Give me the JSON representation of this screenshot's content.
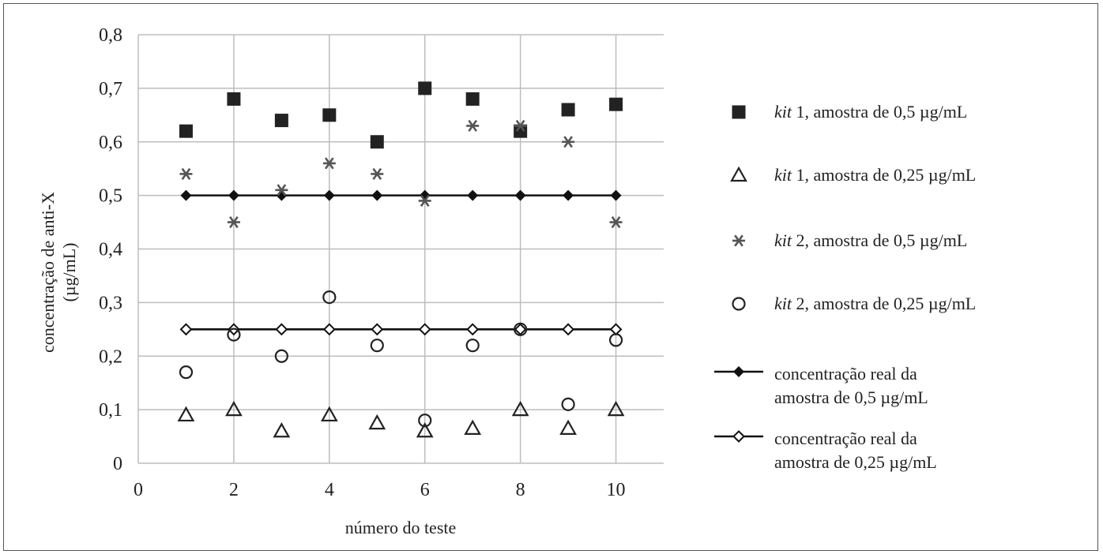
{
  "chart_data": {
    "type": "scatter",
    "xlabel": "número do teste",
    "ylabel_line1": "concentração de anti-X",
    "ylabel_line2": "(µg/mL)",
    "xlim": [
      0,
      11
    ],
    "ylim": [
      0,
      0.8
    ],
    "xticks": [
      0,
      2,
      4,
      6,
      8,
      10
    ],
    "yticks": [
      0,
      0.1,
      0.2,
      0.3,
      0.4,
      0.5,
      0.6,
      0.7,
      0.8
    ],
    "xtick_labels": [
      "0",
      "2",
      "4",
      "6",
      "8",
      "10"
    ],
    "ytick_labels": [
      "0",
      "0,1",
      "0,2",
      "0,3",
      "0,4",
      "0,5",
      "0,6",
      "0,7",
      "0,8"
    ],
    "grid": true,
    "legend_position": "right",
    "x": [
      1,
      2,
      3,
      4,
      5,
      6,
      7,
      8,
      9,
      10
    ],
    "series": [
      {
        "name_italic": "kit",
        "name_rest": " 1, amostra de 0,5 µg/mL",
        "marker": "filled-square",
        "color": "#222222",
        "values": [
          0.62,
          0.68,
          0.64,
          0.65,
          0.6,
          0.7,
          0.68,
          0.62,
          0.66,
          0.67
        ]
      },
      {
        "name_italic": "kit",
        "name_rest": " 1, amostra de 0,25 µg/mL",
        "marker": "open-triangle",
        "color": "#222222",
        "values": [
          0.09,
          0.1,
          0.06,
          0.09,
          0.075,
          0.06,
          0.065,
          0.1,
          0.065,
          0.1
        ]
      },
      {
        "name_italic": "kit",
        "name_rest": " 2, amostra de 0,5 µg/mL",
        "marker": "asterisk",
        "color": "#555555",
        "values": [
          0.54,
          0.45,
          0.51,
          0.56,
          0.54,
          0.49,
          0.63,
          0.63,
          0.6,
          0.45
        ]
      },
      {
        "name_italic": "kit",
        "name_rest": " 2, amostra de 0,25 µg/mL",
        "marker": "open-circle",
        "color": "#222222",
        "values": [
          0.17,
          0.24,
          0.2,
          0.31,
          0.22,
          0.08,
          0.22,
          0.25,
          0.11,
          0.23
        ]
      },
      {
        "name_line1": "concentração real da",
        "name_line2": "amostra de 0,5 µg/mL",
        "marker": "filled-diamond-line",
        "color": "#111111",
        "values": [
          0.5,
          0.5,
          0.5,
          0.5,
          0.5,
          0.5,
          0.5,
          0.5,
          0.5,
          0.5
        ]
      },
      {
        "name_line1": "concentração real da",
        "name_line2": "amostra de 0,25 µg/mL",
        "marker": "open-diamond-line",
        "color": "#111111",
        "values": [
          0.25,
          0.25,
          0.25,
          0.25,
          0.25,
          0.25,
          0.25,
          0.25,
          0.25,
          0.25
        ]
      }
    ]
  }
}
